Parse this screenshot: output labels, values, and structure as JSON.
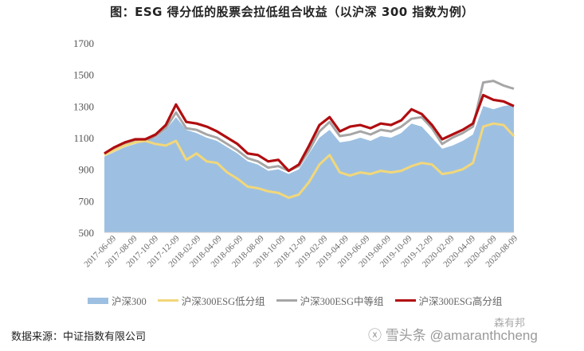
{
  "title": "图：ESG 得分低的股票会拉低组合收益（以沪深 300 指数为例）",
  "source": "数据来源：中证指数有限公司",
  "watermark": {
    "main": "ⓧ 雪头条 @amaranthcheng",
    "corner": "森有邦"
  },
  "colors": {
    "hs300_area": "#9dc0e2",
    "low_esg": "#f2d77a",
    "mid_esg": "#a6a6a6",
    "high_esg": "#b00d10"
  },
  "legend": [
    {
      "label": "沪深300",
      "type": "area",
      "color": "#9dc0e2"
    },
    {
      "label": "沪深300ESG低分组",
      "type": "line",
      "color": "#f2d77a"
    },
    {
      "label": "沪深300ESG中等组",
      "type": "line",
      "color": "#a6a6a6"
    },
    {
      "label": "沪深300ESG高分组",
      "type": "line",
      "color": "#b00d10"
    }
  ],
  "chart_data": {
    "type": "line",
    "title": "图：ESG 得分低的股票会拉低组合收益（以沪深 300 指数为例）",
    "xlabel": "",
    "ylabel": "",
    "ylim": [
      500,
      1700
    ],
    "yticks": [
      500,
      700,
      900,
      1100,
      1300,
      1500,
      1700
    ],
    "grid": false,
    "legend_position": "bottom",
    "x_tick_labels": [
      "2017-06-09",
      "2017-08-09",
      "2017-10-09",
      "2017-12-09",
      "2018-02-09",
      "2018-04-09",
      "2018-06-09",
      "2018-08-09",
      "2018-10-09",
      "2018-12-09",
      "2019-02-09",
      "2019-04-09",
      "2019-06-09",
      "2019-08-09",
      "2019-10-09",
      "2019-12-09",
      "2020-02-09",
      "2020-04-09",
      "2020-06-09",
      "2020-08-09"
    ],
    "x": [
      "2017-06",
      "2017-07",
      "2017-08",
      "2017-09",
      "2017-10",
      "2017-11",
      "2017-12",
      "2018-01",
      "2018-02",
      "2018-03",
      "2018-04",
      "2018-05",
      "2018-06",
      "2018-07",
      "2018-08",
      "2018-09",
      "2018-10",
      "2018-11",
      "2018-12",
      "2019-01",
      "2019-02",
      "2019-03",
      "2019-04",
      "2019-05",
      "2019-06",
      "2019-07",
      "2019-08",
      "2019-09",
      "2019-10",
      "2019-11",
      "2019-12",
      "2020-01",
      "2020-02",
      "2020-03",
      "2020-04",
      "2020-05",
      "2020-06",
      "2020-07",
      "2020-08",
      "2020-09",
      "2020-10"
    ],
    "series": [
      {
        "name": "沪深300",
        "style": "area",
        "values": [
          980,
          1010,
          1040,
          1060,
          1080,
          1100,
          1150,
          1230,
          1150,
          1130,
          1100,
          1080,
          1040,
          1000,
          950,
          930,
          890,
          900,
          870,
          900,
          1000,
          1100,
          1150,
          1070,
          1080,
          1100,
          1080,
          1110,
          1100,
          1130,
          1190,
          1170,
          1100,
          1030,
          1050,
          1080,
          1120,
          1300,
          1280,
          1300,
          1310
        ]
      },
      {
        "name": "沪深300ESG低分组",
        "style": "line",
        "values": [
          990,
          1020,
          1050,
          1070,
          1080,
          1060,
          1050,
          1080,
          960,
          1000,
          950,
          940,
          880,
          840,
          790,
          780,
          760,
          750,
          720,
          740,
          820,
          930,
          990,
          880,
          860,
          880,
          870,
          890,
          880,
          890,
          920,
          940,
          930,
          870,
          880,
          900,
          940,
          1170,
          1190,
          1180,
          1110
        ]
      },
      {
        "name": "沪深300ESG中等组",
        "style": "line",
        "values": [
          995,
          1030,
          1060,
          1080,
          1080,
          1110,
          1160,
          1260,
          1160,
          1150,
          1120,
          1100,
          1060,
          1020,
          970,
          950,
          910,
          920,
          890,
          920,
          1020,
          1140,
          1200,
          1110,
          1120,
          1140,
          1120,
          1150,
          1140,
          1170,
          1220,
          1230,
          1160,
          1060,
          1100,
          1130,
          1170,
          1450,
          1460,
          1430,
          1410
        ]
      },
      {
        "name": "沪深300ESG高分组",
        "style": "line",
        "values": [
          1000,
          1040,
          1070,
          1090,
          1090,
          1120,
          1180,
          1310,
          1200,
          1190,
          1170,
          1140,
          1100,
          1060,
          1000,
          990,
          950,
          960,
          890,
          930,
          1050,
          1180,
          1230,
          1140,
          1170,
          1180,
          1160,
          1190,
          1180,
          1210,
          1280,
          1250,
          1180,
          1090,
          1120,
          1150,
          1190,
          1370,
          1340,
          1330,
          1300
        ]
      }
    ]
  }
}
